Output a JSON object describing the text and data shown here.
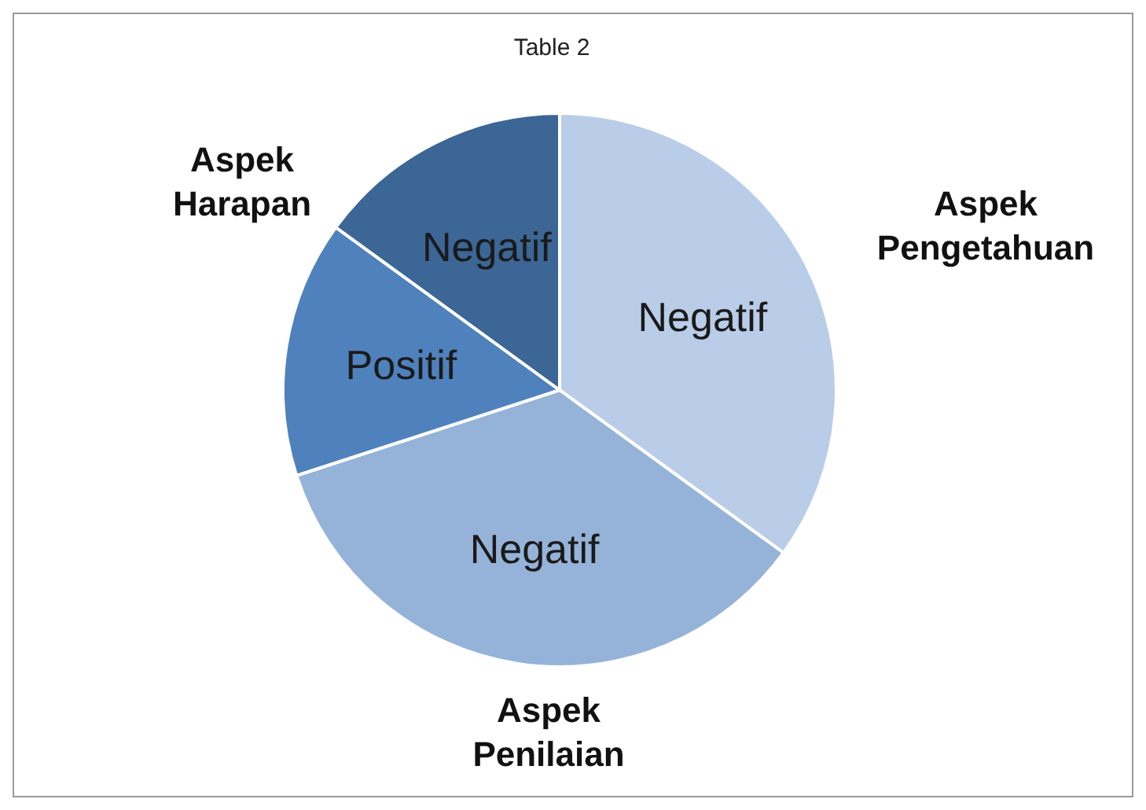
{
  "chart_data": {
    "type": "pie",
    "title": "Table 2",
    "categories": [
      "Negatif",
      "Negatif",
      "Positif",
      "Negatif"
    ],
    "values": [
      35,
      35,
      15,
      15
    ],
    "colors": [
      "#b9cde8",
      "#95b3d9",
      "#4f81bd",
      "#3b6696"
    ],
    "annotations": [
      "Aspek Pengetahuan",
      "Aspek Penilaian",
      "Aspek Harapan"
    ],
    "legend": false
  }
}
